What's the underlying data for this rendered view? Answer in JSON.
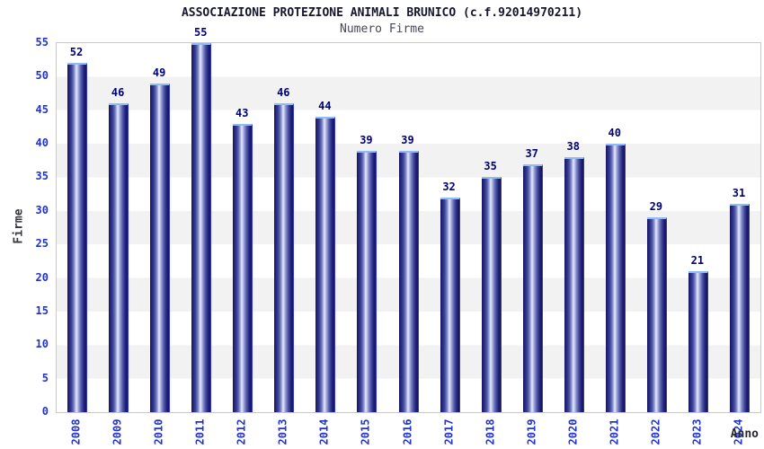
{
  "chart_data": {
    "type": "bar",
    "title": "ASSOCIAZIONE PROTEZIONE ANIMALI BRUNICO (c.f.92014970211)",
    "subtitle": "Numero Firme",
    "xlabel": "Anno",
    "ylabel": "Firme",
    "categories": [
      "2008",
      "2009",
      "2010",
      "2011",
      "2012",
      "2013",
      "2014",
      "2015",
      "2016",
      "2017",
      "2018",
      "2019",
      "2020",
      "2021",
      "2022",
      "2023",
      "2024"
    ],
    "values": [
      52,
      46,
      49,
      55,
      43,
      46,
      44,
      39,
      39,
      32,
      35,
      37,
      38,
      40,
      29,
      21,
      31
    ],
    "ylim": [
      0,
      55
    ],
    "ytick_step": 5,
    "yticks": [
      0,
      5,
      10,
      15,
      20,
      25,
      30,
      35,
      40,
      45,
      50,
      55
    ],
    "grid": "alternating horizontal bands every 5 units",
    "legend": "none",
    "colors": {
      "bar_dark": "#16165f",
      "bar_highlight": "#e7eafb",
      "bar_top_edge": "#8fbcf5",
      "bar_right_edge": "#2e37d6",
      "value_label": "#00007d",
      "tick_label": "#2233cc",
      "band_gray": "#f2f2f2",
      "plot_border": "#c9c9c9",
      "title_color": "#15152e",
      "subtitle_color": "#46465a",
      "axis_title_color": "#38383f",
      "background": "#ffffff"
    }
  }
}
